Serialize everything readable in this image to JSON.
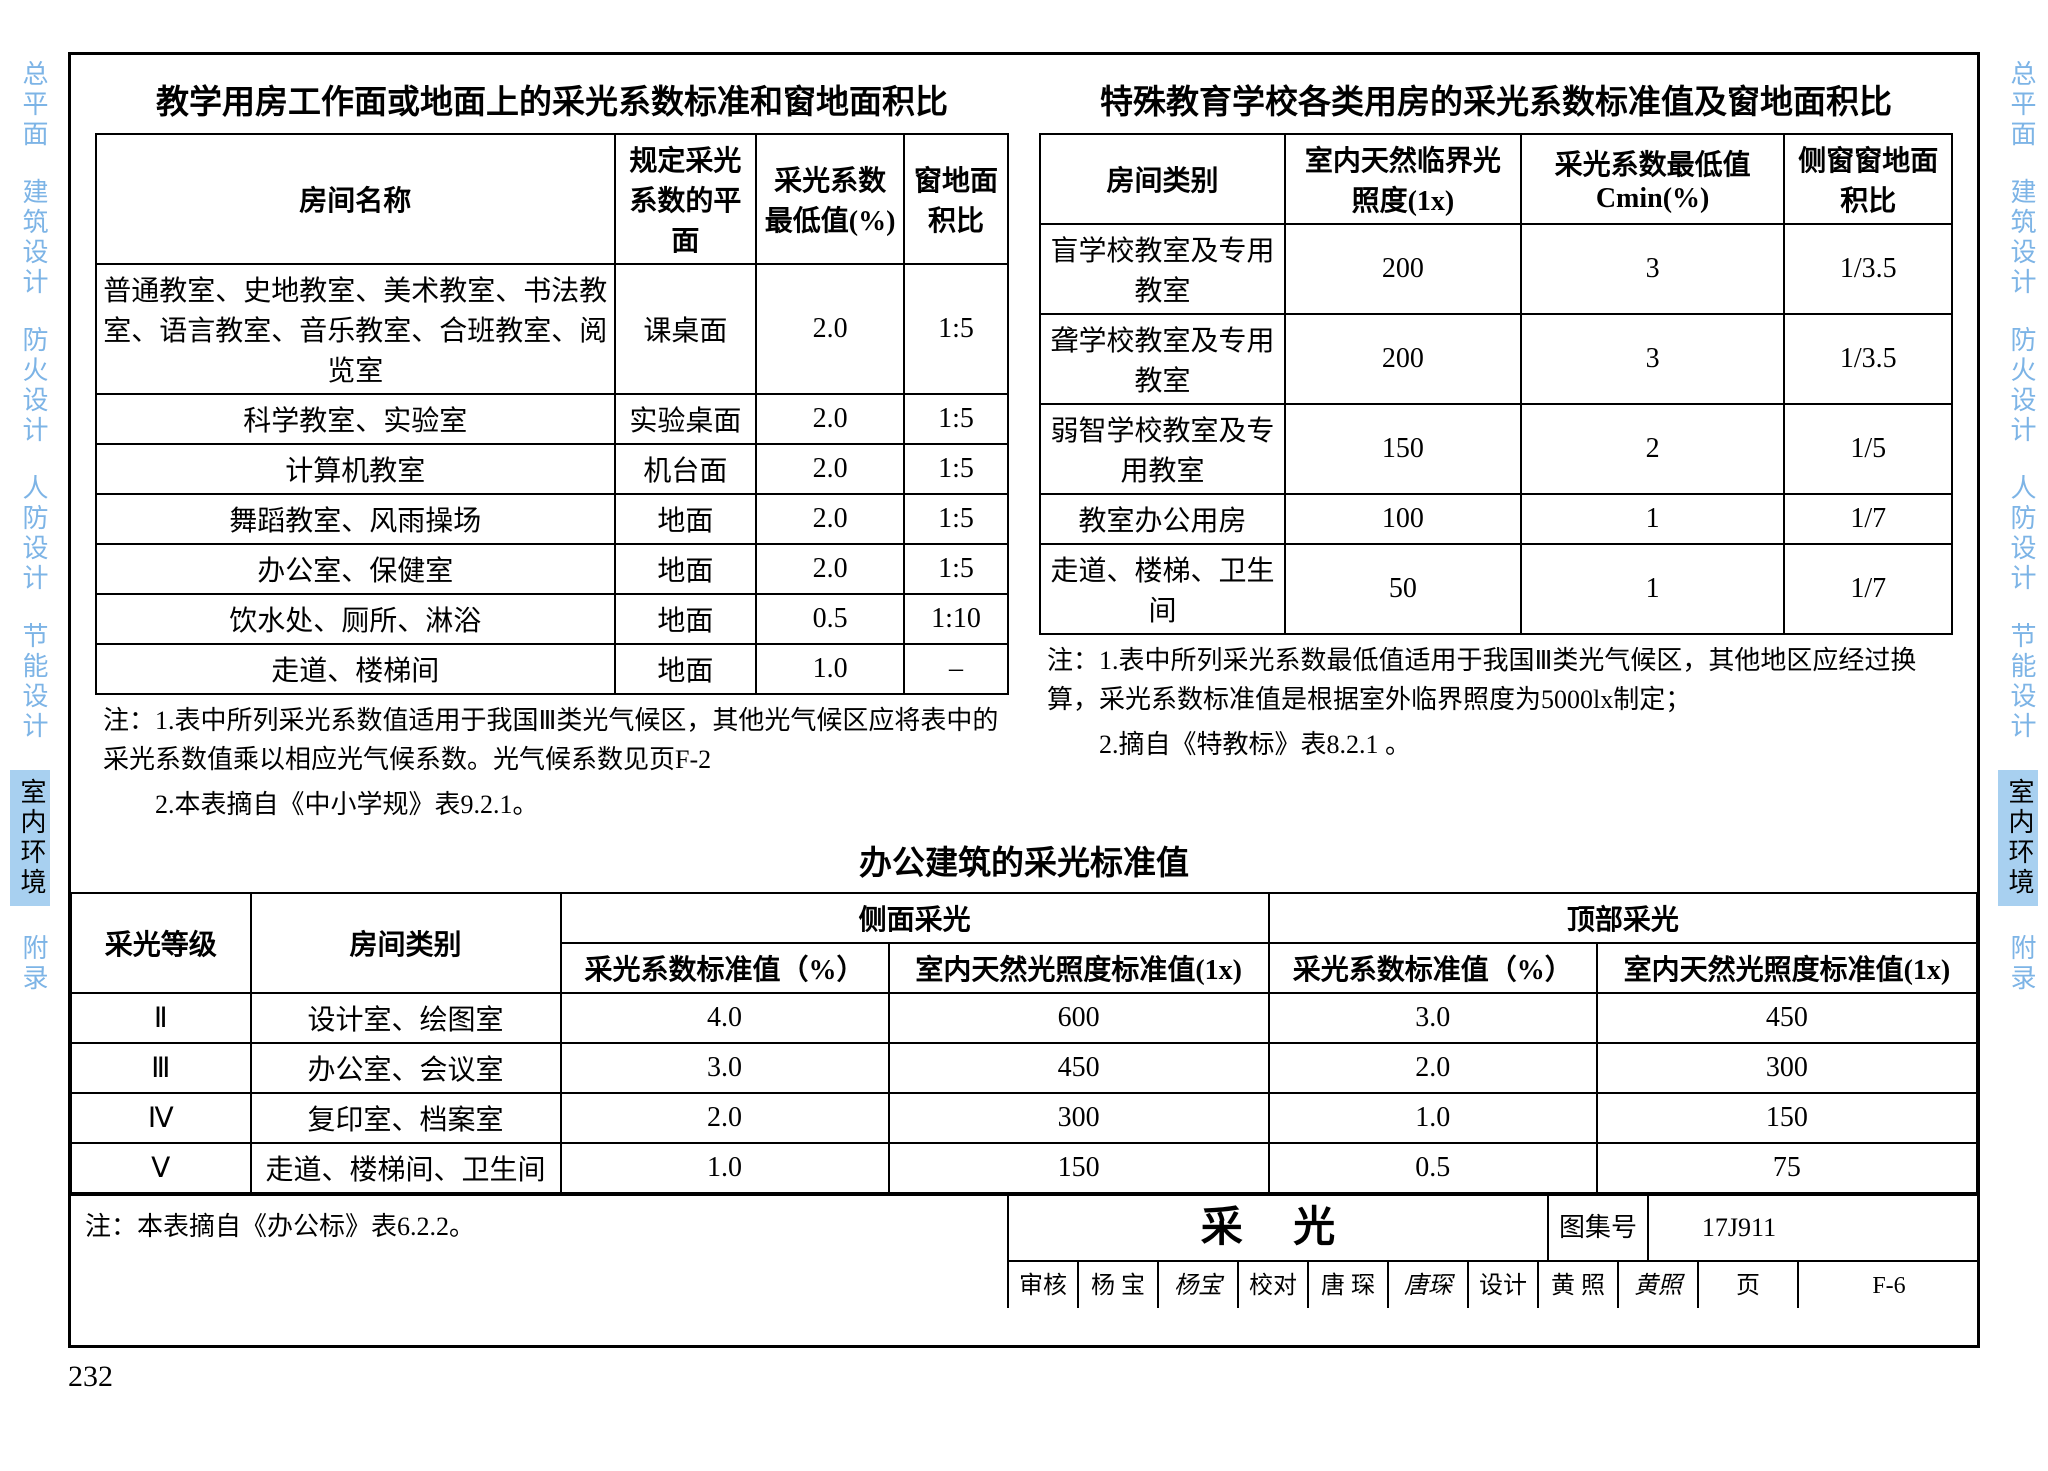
{
  "sideTabs": [
    "总平面",
    "建筑设计",
    "防火设计",
    "人防设计",
    "节能设计",
    "室内环境",
    "附录"
  ],
  "activeTab": "室内环境",
  "table1": {
    "title": "教学用房工作面或地面上的采光系数标准和窗地面积比",
    "headers": [
      "房间名称",
      "规定采光系数的平面",
      "采光系数最低值(%)",
      "窗地面积比"
    ],
    "rows": [
      [
        "普通教室、史地教室、美术教室、书法教室、语言教室、音乐教室、合班教室、阅览室",
        "课桌面",
        "2.0",
        "1:5"
      ],
      [
        "科学教室、实验室",
        "实验桌面",
        "2.0",
        "1:5"
      ],
      [
        "计算机教室",
        "机台面",
        "2.0",
        "1:5"
      ],
      [
        "舞蹈教室、风雨操场",
        "地面",
        "2.0",
        "1:5"
      ],
      [
        "办公室、保健室",
        "地面",
        "2.0",
        "1:5"
      ],
      [
        "饮水处、厕所、淋浴",
        "地面",
        "0.5",
        "1:10"
      ],
      [
        "走道、楼梯间",
        "地面",
        "1.0",
        "–"
      ]
    ],
    "note1": "注：1.表中所列采光系数值适用于我国Ⅲ类光气候区，其他光气候区应将表中的采光系数值乘以相应光气候系数。光气候系数见页F-2",
    "note2": "　　2.本表摘自《中小学规》表9.2.1。"
  },
  "table2": {
    "title": "特殊教育学校各类用房的采光系数标准值及窗地面积比",
    "headers": [
      "房间类别",
      "室内天然临界光照度(1x)",
      "采光系数最低值Cmin(%)",
      "侧窗窗地面积比"
    ],
    "rows": [
      [
        "盲学校教室及专用教室",
        "200",
        "3",
        "1/3.5"
      ],
      [
        "聋学校教室及专用教室",
        "200",
        "3",
        "1/3.5"
      ],
      [
        "弱智学校教室及专用教室",
        "150",
        "2",
        "1/5"
      ],
      [
        "教室办公用房",
        "100",
        "1",
        "1/7"
      ],
      [
        "走道、楼梯、卫生间",
        "50",
        "1",
        "1/7"
      ]
    ],
    "note1": "注：1.表中所列采光系数最低值适用于我国Ⅲ类光气候区，其他地区应经过换算，采光系数标准值是根据室外临界照度为5000lx制定；",
    "note2": "　　2.摘自《特教标》表8.2.1 。"
  },
  "table3": {
    "title": "办公建筑的采光标准值",
    "h1": "采光等级",
    "h2": "房间类别",
    "h3": "侧面采光",
    "h4": "顶部采光",
    "sub1": "采光系数标准值（%）",
    "sub2": "室内天然光照度标准值(1x)",
    "rows": [
      [
        "Ⅱ",
        "设计室、绘图室",
        "4.0",
        "600",
        "3.0",
        "450"
      ],
      [
        "Ⅲ",
        "办公室、会议室",
        "3.0",
        "450",
        "2.0",
        "300"
      ],
      [
        "Ⅳ",
        "复印室、档案室",
        "2.0",
        "300",
        "1.0",
        "150"
      ],
      [
        "Ⅴ",
        "走道、楼梯间、卫生间",
        "1.0",
        "150",
        "0.5",
        "75"
      ]
    ],
    "note": "注：本表摘自《办公标》表6.2.2。"
  },
  "footer": {
    "bigTitle": "采 光",
    "atlasLabel": "图集号",
    "atlasVal": "17J911",
    "row": {
      "l1": "审核",
      "n1": "杨 宝",
      "s1": "杨宝",
      "l2": "校对",
      "n2": "唐 琛",
      "s2": "唐琛",
      "l3": "设计",
      "n3": "黄 照",
      "s3": "黄照",
      "pl": "页",
      "pv": "F-6"
    }
  },
  "pageNumber": "232"
}
